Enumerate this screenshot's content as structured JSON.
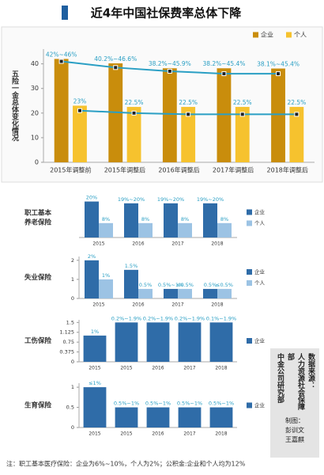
{
  "title": "近4年中国社保费率总体下降",
  "source": [
    "数据来源：",
    "人力资源社会保障部",
    "中金公司研究部"
  ],
  "credit": [
    "制图：",
    "彭训文",
    "王嘉麒"
  ],
  "note": "注：职工基本医疗保险：企业为6%~10%，个人为2%；公积金:企业和个人均为12%",
  "chart_data": [
    {
      "type": "bar",
      "ylabel": "五险一金总体变化情况",
      "categories": [
        "2015年调整前",
        "2015年调整后",
        "2016年调整后",
        "2017年调整后",
        "2018年调整后"
      ],
      "series": [
        {
          "name": "企业",
          "color": "#c98d0c",
          "values": [
            42,
            40.2,
            38.2,
            38.2,
            38.1
          ],
          "value_labels": [
            "42%~46%",
            "40.2%~46.6%",
            "38.2%~45.9%",
            "38.2%~45.4%",
            "38.1%~45.4%"
          ]
        },
        {
          "name": "个人",
          "color": "#f6c22e",
          "values": [
            23,
            22.5,
            22.5,
            22.5,
            22.5
          ],
          "value_labels": [
            "23%",
            "22.5%",
            "22.5%",
            "22.5%",
            "22.5%"
          ]
        }
      ],
      "lines": [
        {
          "color": "#2a9fc4",
          "values": [
            41,
            38.5,
            37,
            36,
            36
          ]
        },
        {
          "color": "#2a9fc4",
          "values": [
            21,
            20,
            19.5,
            19.5,
            19.5
          ]
        }
      ],
      "ylim": [
        0,
        46
      ],
      "yticks": [
        0,
        10,
        20,
        30,
        40
      ],
      "legend": "top-right"
    },
    {
      "type": "bar",
      "label": [
        "职工基本",
        "养老保险"
      ],
      "categories": [
        "2015",
        "2016",
        "2017",
        "2018"
      ],
      "series": [
        {
          "name": "企业",
          "color": "#2f6ca8",
          "values": [
            20,
            19,
            19,
            19
          ],
          "value_labels": [
            "20%",
            "19%~20%",
            "19%~20%",
            "19%~20%"
          ]
        },
        {
          "name": "个人",
          "color": "#9cc3e4",
          "values": [
            8,
            8,
            8,
            8
          ],
          "value_labels": [
            "8%",
            "8%",
            "8%",
            "8%"
          ]
        }
      ],
      "ylim": [
        0,
        22
      ],
      "legend": "right"
    },
    {
      "type": "bar",
      "label": [
        "失业保险"
      ],
      "categories": [
        "2015",
        "2016",
        "2017",
        "2018"
      ],
      "series": [
        {
          "name": "企业",
          "color": "#2f6ca8",
          "values": [
            2,
            1.5,
            0.5,
            0.5
          ],
          "value_labels": [
            "2%",
            "1.5%",
            "0.5%~1%",
            "0.5%"
          ]
        },
        {
          "name": "个人",
          "color": "#9cc3e4",
          "values": [
            1,
            0.5,
            0.5,
            0.5
          ],
          "value_labels": [
            "1%",
            "0.5%",
            "≤0.5%",
            "≤0.5%"
          ]
        }
      ],
      "ylim": [
        0,
        2.2
      ],
      "yticks": [
        0,
        1,
        2
      ],
      "legend": "right"
    },
    {
      "type": "bar",
      "label": [
        "工伤保险"
      ],
      "categories": [
        "2015",
        "2015",
        "2016",
        "2017",
        "2018"
      ],
      "series": [
        {
          "name": "企业",
          "color": "#2f6ca8",
          "values": [
            1,
            1.5,
            1.5,
            1.5,
            1.5
          ],
          "value_labels": [
            "1%",
            "0.2%~1.9%",
            "0.2%~1.9%",
            "0.2%~1.9%",
            "0.1%~1.9%"
          ]
        }
      ],
      "ylim": [
        0,
        1.6
      ],
      "yticks": [
        0,
        0.375,
        0.75,
        1.125,
        1.5
      ],
      "legend": "right"
    },
    {
      "type": "bar",
      "label": [
        "生育保险"
      ],
      "categories": [
        "2015",
        "2015",
        "2016",
        "2017",
        "2018"
      ],
      "series": [
        {
          "name": "企业",
          "color": "#2f6ca8",
          "values": [
            1,
            0.5,
            0.5,
            0.5,
            0.5
          ],
          "value_labels": [
            "≤1%",
            "0.5%~1%",
            "0.5%~1%",
            "0.5%~1%",
            "0.5%~1%"
          ]
        }
      ],
      "ylim": [
        0,
        1.1
      ],
      "yticks": [
        0,
        0.5,
        1
      ],
      "legend": "right"
    }
  ]
}
